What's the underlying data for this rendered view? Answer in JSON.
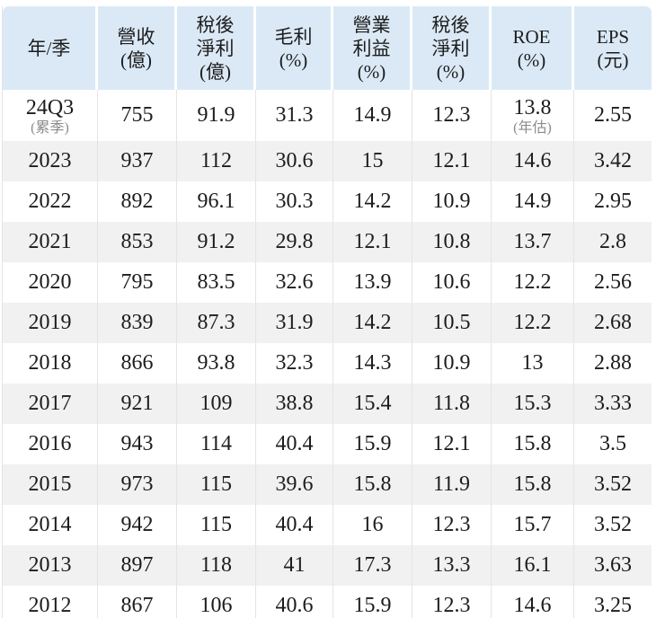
{
  "colors": {
    "header_bg": "#dbe9f6",
    "row_alt_bg": "#f1f1f1",
    "divider": "#e4e4e4",
    "text": "#1c1c1c",
    "muted_text": "#8c8c8c"
  },
  "chart_data": {
    "type": "table",
    "columns": [
      {
        "id": "year",
        "label": "年/季",
        "lines": [
          "年/季"
        ]
      },
      {
        "id": "revenue",
        "label": "營收(億)",
        "lines": [
          "營收",
          "(億)"
        ]
      },
      {
        "id": "net-profit-amt",
        "label": "稅後淨利(億)",
        "lines": [
          "稅後",
          "淨利",
          "(億)"
        ]
      },
      {
        "id": "gross-margin",
        "label": "毛利(%)",
        "lines": [
          "毛利",
          "(%)"
        ]
      },
      {
        "id": "operating-margin",
        "label": "營業利益(%)",
        "lines": [
          "營業",
          "利益",
          "(%)"
        ]
      },
      {
        "id": "net-margin",
        "label": "稅後淨利(%)",
        "lines": [
          "稅後",
          "淨利",
          "(%)"
        ]
      },
      {
        "id": "roe",
        "label": "ROE(%)",
        "lines": [
          "ROE",
          "(%)"
        ]
      },
      {
        "id": "eps",
        "label": "EPS(元)",
        "lines": [
          "EPS",
          "(元)"
        ]
      }
    ],
    "rows": [
      {
        "cells": [
          "24Q3",
          "755",
          "91.9",
          "31.3",
          "14.9",
          "12.3",
          "13.8",
          "2.55"
        ],
        "subs": {
          "0": "(累季)",
          "6": "(年估)"
        }
      },
      {
        "cells": [
          "2023",
          "937",
          "112",
          "30.6",
          "15",
          "12.1",
          "14.6",
          "3.42"
        ]
      },
      {
        "cells": [
          "2022",
          "892",
          "96.1",
          "30.3",
          "14.2",
          "10.9",
          "14.9",
          "2.95"
        ]
      },
      {
        "cells": [
          "2021",
          "853",
          "91.2",
          "29.8",
          "12.1",
          "10.8",
          "13.7",
          "2.8"
        ]
      },
      {
        "cells": [
          "2020",
          "795",
          "83.5",
          "32.6",
          "13.9",
          "10.6",
          "12.2",
          "2.56"
        ]
      },
      {
        "cells": [
          "2019",
          "839",
          "87.3",
          "31.9",
          "14.2",
          "10.5",
          "12.2",
          "2.68"
        ]
      },
      {
        "cells": [
          "2018",
          "866",
          "93.8",
          "32.3",
          "14.3",
          "10.9",
          "13",
          "2.88"
        ]
      },
      {
        "cells": [
          "2017",
          "921",
          "109",
          "38.8",
          "15.4",
          "11.8",
          "15.3",
          "3.33"
        ]
      },
      {
        "cells": [
          "2016",
          "943",
          "114",
          "40.4",
          "15.9",
          "12.1",
          "15.8",
          "3.5"
        ]
      },
      {
        "cells": [
          "2015",
          "973",
          "115",
          "39.6",
          "15.8",
          "11.9",
          "15.8",
          "3.52"
        ]
      },
      {
        "cells": [
          "2014",
          "942",
          "115",
          "40.4",
          "16",
          "12.3",
          "15.7",
          "3.52"
        ]
      },
      {
        "cells": [
          "2013",
          "897",
          "118",
          "41",
          "17.3",
          "13.3",
          "16.1",
          "3.63"
        ]
      },
      {
        "cells": [
          "2012",
          "867",
          "106",
          "40.6",
          "15.9",
          "12.3",
          "14.6",
          "3.25"
        ]
      }
    ]
  }
}
